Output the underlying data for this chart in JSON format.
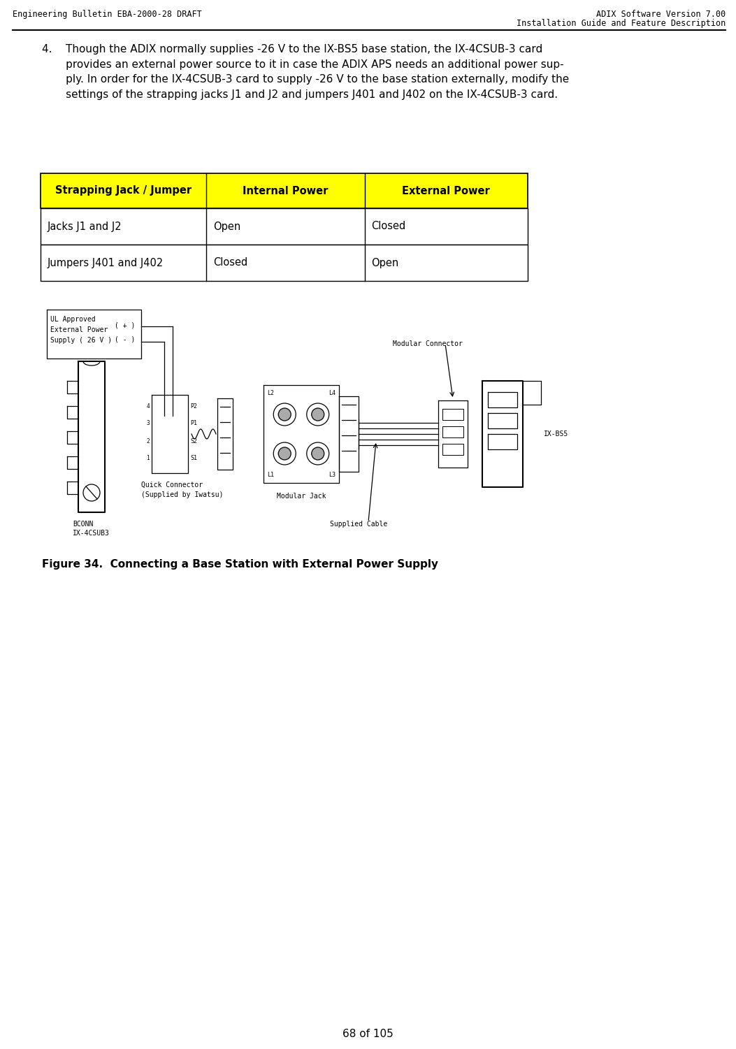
{
  "header_left": "Engineering Bulletin EBA-2000-28 DRAFT",
  "header_right_line1": "ADIX Software Version 7.00",
  "header_right_line2": "Installation Guide and Feature Description",
  "table_header": [
    "Strapping Jack / Jumper",
    "Internal Power",
    "External Power"
  ],
  "table_rows": [
    [
      "Jacks J1 and J2",
      "Open",
      "Closed"
    ],
    [
      "Jumpers J401 and J402",
      "Closed",
      "Open"
    ]
  ],
  "table_header_bg": "#FFFF00",
  "figure_caption": "Figure 34.  Connecting a Base Station with External Power Supply",
  "footer_text": "68 of 105",
  "bg_color": "#FFFFFF",
  "text_color": "#000000",
  "header_font_size": 8.5,
  "body_font_size": 11,
  "table_font_size": 10.5,
  "caption_font_size": 11,
  "body_line1": "4.    Though the ADIX normally supplies -26 V to the IX-BS5 base station, the IX-4CSUB-3 card",
  "body_line2": "       provides an external power source to it in case the ADIX APS needs an additional power sup-",
  "body_line3": "       ply. In order for the IX-4CSUB-3 card to supply -26 V to the base station externally, modify the",
  "body_line4": "       settings of the strapping jacks J1 and J2 and jumpers J401 and J402 on the IX-4CSUB-3 card."
}
